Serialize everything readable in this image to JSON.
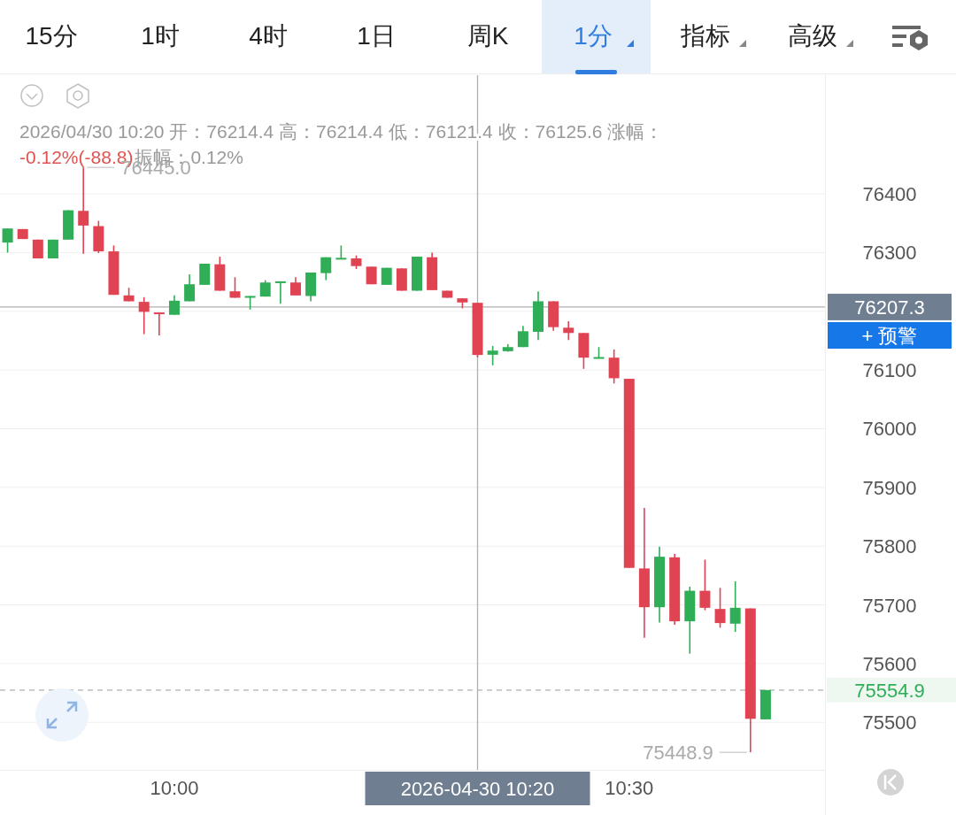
{
  "chart_data": {
    "type": "candlestick",
    "x": [
      "2026-04-30T09:49",
      "2026-04-30T09:50",
      "2026-04-30T09:51",
      "2026-04-30T09:52",
      "2026-04-30T09:53",
      "2026-04-30T09:54",
      "2026-04-30T09:55",
      "2026-04-30T09:56",
      "2026-04-30T09:57",
      "2026-04-30T09:58",
      "2026-04-30T09:59",
      "2026-04-30T10:00",
      "2026-04-30T10:01",
      "2026-04-30T10:02",
      "2026-04-30T10:03",
      "2026-04-30T10:04",
      "2026-04-30T10:05",
      "2026-04-30T10:06",
      "2026-04-30T10:07",
      "2026-04-30T10:08",
      "2026-04-30T10:09",
      "2026-04-30T10:10",
      "2026-04-30T10:11",
      "2026-04-30T10:12",
      "2026-04-30T10:13",
      "2026-04-30T10:14",
      "2026-04-30T10:15",
      "2026-04-30T10:16",
      "2026-04-30T10:17",
      "2026-04-30T10:18",
      "2026-04-30T10:19",
      "2026-04-30T10:20",
      "2026-04-30T10:21",
      "2026-04-30T10:22",
      "2026-04-30T10:23",
      "2026-04-30T10:24",
      "2026-04-30T10:25",
      "2026-04-30T10:26",
      "2026-04-30T10:27",
      "2026-04-30T10:28",
      "2026-04-30T10:29",
      "2026-04-30T10:30",
      "2026-04-30T10:31",
      "2026-04-30T10:32",
      "2026-04-30T10:33",
      "2026-04-30T10:34",
      "2026-04-30T10:35",
      "2026-04-30T10:36",
      "2026-04-30T10:37",
      "2026-04-30T10:38",
      "2026-04-30T10:39"
    ],
    "ohlc": [
      [
        76317,
        76341,
        76300,
        76341
      ],
      [
        76340,
        76340,
        76323,
        76323
      ],
      [
        76322,
        76322,
        76290,
        76290
      ],
      [
        76290,
        76322,
        76290,
        76322
      ],
      [
        76322,
        76372,
        76322,
        76372
      ],
      [
        76371,
        76445.0,
        76298,
        76346
      ],
      [
        76345,
        76354,
        76299,
        76302
      ],
      [
        76302,
        76312,
        76228,
        76228
      ],
      [
        76227,
        76240,
        76217,
        76217
      ],
      [
        76216,
        76224,
        76161,
        76199
      ],
      [
        76198,
        76198,
        76159,
        76195
      ],
      [
        76194,
        76227,
        76194,
        76218
      ],
      [
        76217,
        76263,
        76217,
        76246
      ],
      [
        76245,
        76281,
        76245,
        76281
      ],
      [
        76280,
        76293,
        76235,
        76235
      ],
      [
        76234,
        76258,
        76223,
        76223
      ],
      [
        76224,
        76226,
        76203,
        76226
      ],
      [
        76225,
        76253,
        76225,
        76249
      ],
      [
        76249,
        76251,
        76213,
        76251
      ],
      [
        76249,
        76258,
        76227,
        76227
      ],
      [
        76226,
        76266,
        76217,
        76266
      ],
      [
        76265,
        76292,
        76253,
        76292
      ],
      [
        76290,
        76312,
        76290,
        76291
      ],
      [
        76290,
        76295,
        76272,
        76277
      ],
      [
        76276,
        76276,
        76246,
        76246
      ],
      [
        76245,
        76274,
        76245,
        76274
      ],
      [
        76273,
        76273,
        76235,
        76235
      ],
      [
        76235,
        76293,
        76235,
        76293
      ],
      [
        76292,
        76300,
        76236,
        76236
      ],
      [
        76235,
        76235,
        76223,
        76223
      ],
      [
        76222,
        76222,
        76205,
        76215
      ],
      [
        76214.4,
        76214.4,
        76121.4,
        76125.6
      ],
      [
        76126,
        76141,
        76108,
        76133
      ],
      [
        76132,
        76144,
        76131,
        76139
      ],
      [
        76139,
        76175,
        76139,
        76166
      ],
      [
        76165,
        76234,
        76151,
        76217
      ],
      [
        76217,
        76217,
        76167,
        76173
      ],
      [
        76172,
        76183,
        76151,
        76163
      ],
      [
        76163,
        76163,
        76102,
        76121
      ],
      [
        76121,
        76139,
        76121,
        76122
      ],
      [
        76121,
        76135,
        76077,
        76086
      ],
      [
        76085,
        76085,
        75763,
        75763
      ],
      [
        75762,
        75865,
        75644,
        75696
      ],
      [
        75696,
        75799,
        75670,
        75782
      ],
      [
        75781,
        75787,
        75666,
        75672
      ],
      [
        75672,
        75731,
        75617,
        75724
      ],
      [
        75724,
        75777,
        75691,
        75695
      ],
      [
        75693,
        75729,
        75661,
        75669
      ],
      [
        75668,
        75740,
        75654,
        75695
      ],
      [
        75694,
        75694,
        75448.9,
        75506
      ],
      [
        75505,
        75554.9,
        75505,
        75554.9
      ]
    ],
    "colors": [
      "#2fae57",
      "#e04352",
      "#e04352",
      "#2fae57",
      "#2fae57",
      "#e04352",
      "#e04352",
      "#e04352",
      "#e04352",
      "#e04352",
      "#e04352",
      "#2fae57",
      "#2fae57",
      "#2fae57",
      "#e04352",
      "#e04352",
      "#2fae57",
      "#2fae57",
      "#2fae57",
      "#e04352",
      "#2fae57",
      "#2fae57",
      "#2fae57",
      "#e04352",
      "#e04352",
      "#2fae57",
      "#e04352",
      "#2fae57",
      "#e04352",
      "#e04352",
      "#e04352",
      "#e04352",
      "#2fae57",
      "#2fae57",
      "#2fae57",
      "#2fae57",
      "#e04352",
      "#e04352",
      "#e04352",
      "#2fae57",
      "#e04352",
      "#e04352",
      "#e04352",
      "#2fae57",
      "#e04352",
      "#2fae57",
      "#e04352",
      "#e04352",
      "#2fae57",
      "#e04352",
      "#2fae57"
    ],
    "xlim": [
      "2026-04-30T09:48:30",
      "2026-04-30T10:42:55"
    ],
    "xticks": [
      {
        "value": "2026-04-30T10:00",
        "label": "10:00"
      },
      {
        "value": "2026-04-30T10:30",
        "label": "10:30"
      }
    ],
    "ylim": [
      75419,
      76602
    ],
    "yticks": [
      75500,
      75600,
      75700,
      75800,
      75900,
      76000,
      76100,
      {
        "value": 76200,
        "label": null
      },
      76300,
      76400
    ],
    "grid": "y",
    "ref_lines": [
      {
        "axis": "x",
        "value": "2026-04-30T10:20",
        "label": "2026-04-30 10:20",
        "color": "#b0b0b0"
      },
      {
        "axis": "y",
        "value": 76207.3,
        "label": "76207.3",
        "color": "#b0b0b0"
      },
      {
        "axis": "y",
        "value": 75554.9,
        "label": "75554.9",
        "color": "#b0b0b0",
        "line_style": "dashed"
      }
    ],
    "annotations": [
      "15分",
      "1时",
      "4时",
      "1日",
      "周K",
      "1分",
      "指标",
      "高级",
      "2026/04/30 10:20 开：76214.4 高：76214.4 低：76121.4 收：76125.6 涨幅：",
      "-0.12%(-88.8)",
      "振幅：0.12%",
      "+ 预警",
      {
        "text": "76445.0",
        "x": "2026-04-30T09:54",
        "y": 76445.0
      },
      {
        "text": "75448.9",
        "x": "2026-04-30T10:38",
        "y": 75448.9
      }
    ]
  }
}
